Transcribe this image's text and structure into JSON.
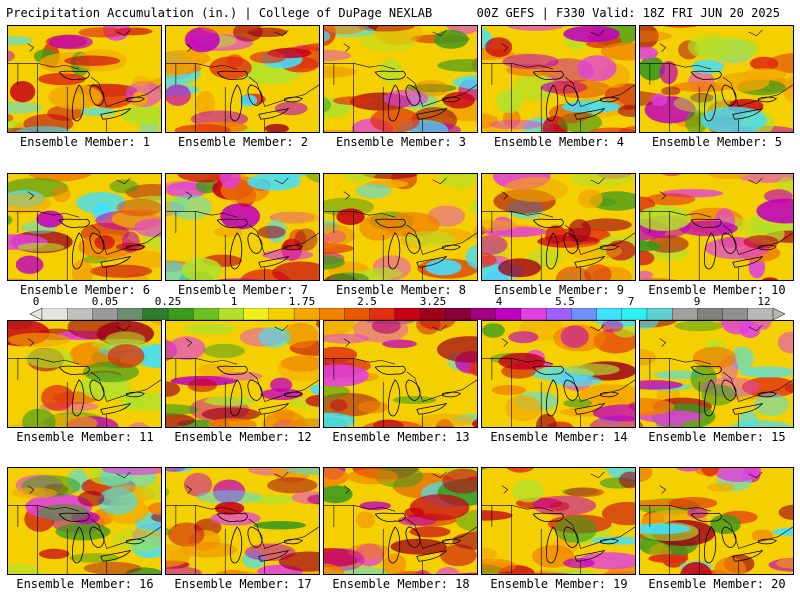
{
  "header": {
    "title": "Precipitation Accumulation (in.) | College of DuPage NEXLAB",
    "run_info": "00Z GEFS | F330 Valid: 18Z FRI JUN 20 2025"
  },
  "colorbar": {
    "labels": [
      "0",
      "0.05",
      "0.25",
      "1",
      "1.75",
      "2.5",
      "3.25",
      "4",
      "5.5",
      "7",
      "9",
      "12"
    ],
    "colors": [
      "#e4e4e4",
      "#c0c0c0",
      "#9a9a9a",
      "#6c8e6c",
      "#2e7d2e",
      "#3c9a1e",
      "#6cc022",
      "#b2e02a",
      "#f0f020",
      "#f4d000",
      "#f2a800",
      "#f08000",
      "#e85a00",
      "#e02e10",
      "#c80018",
      "#a0001c",
      "#880038",
      "#a00080",
      "#c000c0",
      "#e040e0",
      "#a060ff",
      "#7090ff",
      "#40e0ff",
      "#30f0f0",
      "#60d0d0",
      "#a0a0a0",
      "#808080",
      "#909090",
      "#b8b8b8"
    ]
  },
  "panels": [
    {
      "label": "Ensemble Member: 1"
    },
    {
      "label": "Ensemble Member: 2"
    },
    {
      "label": "Ensemble Member: 3"
    },
    {
      "label": "Ensemble Member: 4"
    },
    {
      "label": "Ensemble Member: 5"
    },
    {
      "label": "Ensemble Member: 6"
    },
    {
      "label": "Ensemble Member: 7"
    },
    {
      "label": "Ensemble Member: 8"
    },
    {
      "label": "Ensemble Member: 9"
    },
    {
      "label": "Ensemble Member: 10"
    },
    {
      "label": "Ensemble Member: 11"
    },
    {
      "label": "Ensemble Member: 12"
    },
    {
      "label": "Ensemble Member: 13"
    },
    {
      "label": "Ensemble Member: 14"
    },
    {
      "label": "Ensemble Member: 15"
    },
    {
      "label": "Ensemble Member: 16"
    },
    {
      "label": "Ensemble Member: 17"
    },
    {
      "label": "Ensemble Member: 18"
    },
    {
      "label": "Ensemble Member: 19"
    },
    {
      "label": "Ensemble Member: 20"
    }
  ]
}
